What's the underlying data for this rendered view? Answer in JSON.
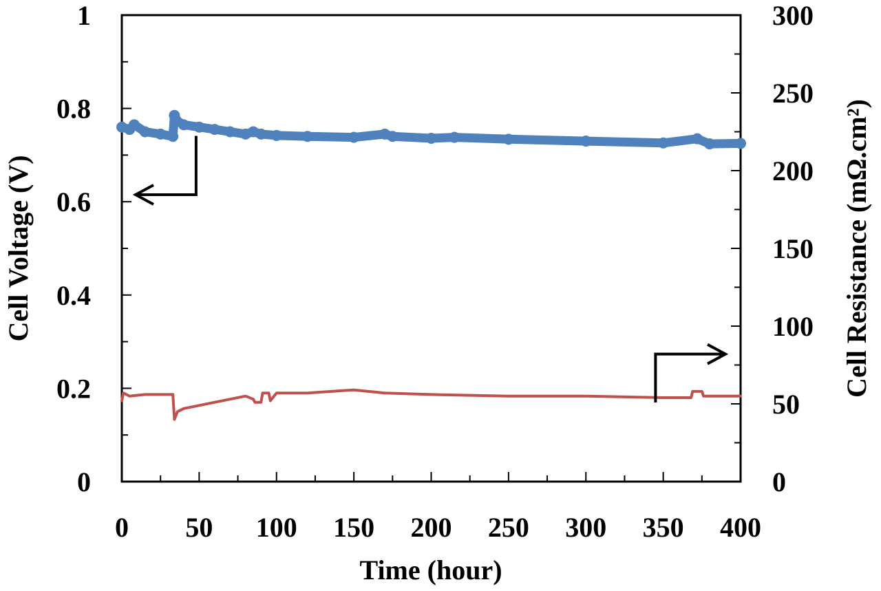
{
  "chart_data": {
    "type": "line",
    "xlabel": "Time  (hour)",
    "ylabel_left": "Cell Voltage (V)",
    "ylabel_right": "Cell Resistance (mΩ.cm²)",
    "xlim": [
      0,
      400
    ],
    "ylim_left": [
      0,
      1
    ],
    "ylim_right": [
      0,
      300
    ],
    "x_ticks": [
      "0",
      "50",
      "100",
      "150",
      "200",
      "250",
      "300",
      "350",
      "400"
    ],
    "y_left_ticks": [
      "0",
      "0.2",
      "0.4",
      "0.6",
      "0.8",
      "1"
    ],
    "y_right_ticks": [
      "0",
      "50",
      "100",
      "150",
      "200",
      "250",
      "300"
    ],
    "grid": false,
    "series": [
      {
        "axis": "left",
        "color": "#4f81bd",
        "x": [
          0,
          5,
          8,
          15,
          25,
          33,
          34,
          35,
          40,
          50,
          60,
          70,
          80,
          85,
          90,
          100,
          120,
          150,
          170,
          175,
          200,
          215,
          250,
          300,
          350,
          372,
          380,
          400
        ],
        "y": [
          0.76,
          0.755,
          0.765,
          0.75,
          0.745,
          0.74,
          0.785,
          0.775,
          0.765,
          0.76,
          0.755,
          0.75,
          0.745,
          0.75,
          0.745,
          0.742,
          0.74,
          0.738,
          0.745,
          0.74,
          0.736,
          0.738,
          0.734,
          0.73,
          0.726,
          0.735,
          0.724,
          0.725
        ]
      },
      {
        "axis": "right",
        "color": "#c0504d",
        "x": [
          0,
          1,
          5,
          15,
          25,
          33,
          34,
          36,
          40,
          50,
          60,
          70,
          80,
          85,
          86,
          90,
          91,
          95,
          96,
          100,
          120,
          150,
          170,
          200,
          250,
          300,
          350,
          368,
          369,
          375,
          376,
          400
        ],
        "y": [
          52,
          57,
          55,
          56,
          56,
          56,
          40,
          45,
          47,
          49,
          51,
          53,
          55,
          53,
          51,
          51,
          57,
          57,
          52,
          57,
          57,
          59,
          57,
          56,
          55,
          55,
          54,
          54,
          58,
          58,
          55,
          55
        ]
      }
    ],
    "annotations": [
      {
        "type": "arrow",
        "points_to": "left",
        "x": 48,
        "y_left": 0.75
      },
      {
        "type": "arrow",
        "points_to": "right",
        "x": 345,
        "y_right": 50
      }
    ]
  }
}
